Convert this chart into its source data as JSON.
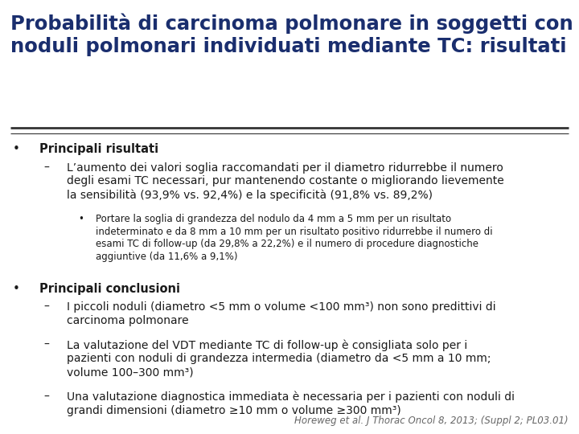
{
  "title_line1": "Probabilità di carcinoma polmonare in soggetti con",
  "title_line2": "noduli polmonari individuati mediante TC: risultati",
  "title_color": "#1a2e6e",
  "title_fontsize": 17.5,
  "bg_color": "#ffffff",
  "text_color": "#1a1a1a",
  "bullet_color": "#1a1a1a",
  "separator_color": "#333333",
  "content": [
    {
      "type": "bullet_bold",
      "text": "Principali risultati"
    },
    {
      "type": "dash",
      "text": "L’aumento dei valori soglia raccomandati per il diametro ridurrebbe il numero\ndegli esami TC necessari, pur mantenendo costante o migliorando lievemente\nla sensibilità (93,9% vs. 92,4%) e la specificità (91,8% vs. 89,2%)"
    },
    {
      "type": "sub_bullet",
      "text": "Portare la soglia di grandezza del nodulo da 4 mm a 5 mm per un risultato\nindeterminato e da 8 mm a 10 mm per un risultato positivo ridurrebbe il numero di\nesami TC di follow-up (da 29,8% a 22,2%) e il numero di procedure diagnostiche\naggiuntive (da 11,6% a 9,1%)"
    },
    {
      "type": "bullet_bold",
      "text": "Principali conclusioni"
    },
    {
      "type": "dash",
      "text": "I piccoli noduli (diametro <5 mm o volume <100 mm³) non sono predittivi di\ncarcinoma polmonare"
    },
    {
      "type": "dash",
      "text": "La valutazione del VDT mediante TC di follow-up è consigliata solo per i\npazienti con noduli di grandezza intermedia (diametro da <5 mm a 10 mm;\nvolume 100–300 mm³)"
    },
    {
      "type": "dash",
      "text": "Una valutazione diagnostica immediata è necessaria per i pazienti con noduli di\ngrandi dimensioni (diametro ≥10 mm o volume ≥300 mm³)"
    }
  ],
  "footnote": "Horeweg et al. J Thorac Oncol 8, 2013; (Suppl 2; PL03.01)",
  "footnote_fontsize": 8.5,
  "footnote_color": "#666666"
}
